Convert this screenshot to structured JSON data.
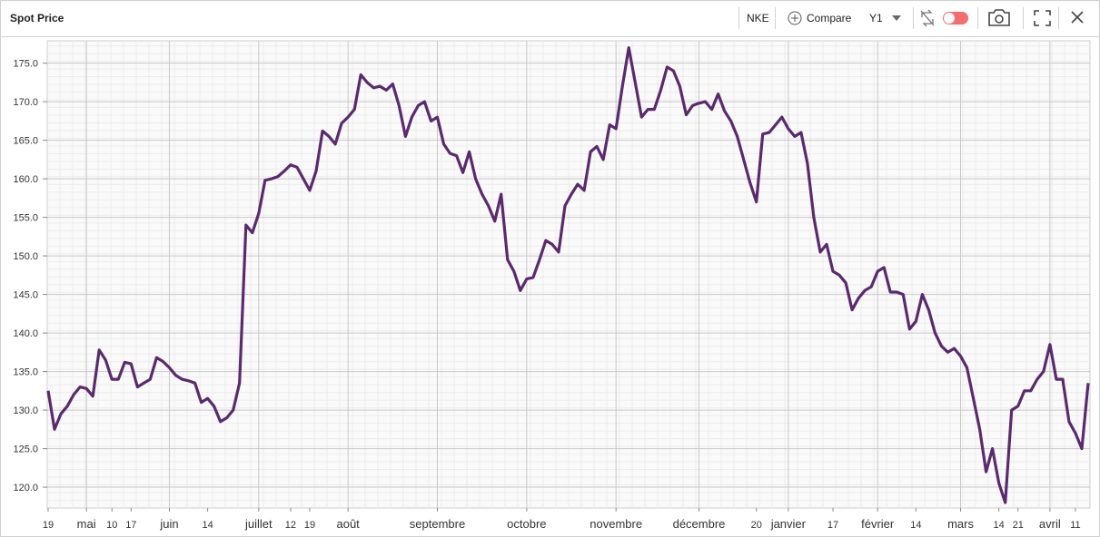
{
  "toolbar": {
    "ticker": "NKE",
    "compare": "Compare",
    "period": "Y1"
  },
  "chart_data": {
    "type": "line",
    "title": "Spot Price",
    "categories": [
      "19",
      null,
      null,
      null,
      null,
      null,
      "mai",
      null,
      null,
      null,
      "10",
      null,
      null,
      "17",
      null,
      null,
      null,
      null,
      null,
      "juin",
      null,
      null,
      null,
      null,
      null,
      "14",
      null,
      null,
      null,
      null,
      null,
      null,
      null,
      "juillet",
      null,
      null,
      null,
      null,
      "12",
      null,
      null,
      "19",
      null,
      null,
      null,
      null,
      null,
      "août",
      null,
      null,
      null,
      null,
      null,
      null,
      null,
      null,
      null,
      null,
      null,
      null,
      null,
      "septembre",
      null,
      null,
      null,
      null,
      null,
      null,
      null,
      null,
      null,
      null,
      null,
      null,
      null,
      "octobre",
      null,
      null,
      null,
      null,
      null,
      null,
      null,
      null,
      null,
      null,
      null,
      null,
      null,
      "novembre",
      null,
      null,
      null,
      null,
      null,
      null,
      null,
      null,
      null,
      null,
      null,
      null,
      "décembre",
      null,
      null,
      null,
      null,
      null,
      null,
      null,
      null,
      "20",
      null,
      null,
      null,
      null,
      "janvier",
      null,
      null,
      null,
      null,
      null,
      null,
      "17",
      null,
      null,
      null,
      null,
      null,
      null,
      "février",
      null,
      null,
      null,
      null,
      null,
      "14",
      null,
      null,
      null,
      null,
      null,
      null,
      "mars",
      null,
      null,
      null,
      null,
      null,
      "14",
      null,
      null,
      "21",
      null,
      null,
      null,
      null,
      "avril",
      null,
      null,
      null,
      "11",
      null,
      null
    ],
    "series": [
      {
        "name": "NKE",
        "color": "#5b2a6e",
        "values": [
          132.5,
          127.5,
          129.5,
          130.5,
          132,
          133,
          132.8,
          131.8,
          137.8,
          136.5,
          134,
          134,
          136.2,
          136,
          133,
          133.5,
          134,
          136.8,
          136.3,
          135.5,
          134.5,
          134,
          133.8,
          133.5,
          131,
          131.5,
          130.5,
          128.5,
          129,
          130,
          133.5,
          154,
          153,
          155.5,
          159.8,
          160,
          160.3,
          161,
          161.8,
          161.5,
          160,
          158.5,
          161,
          166.2,
          165.5,
          164.5,
          167.2,
          168,
          169,
          173.5,
          172.5,
          171.8,
          172,
          171.5,
          172.3,
          169.5,
          165.5,
          168,
          169.5,
          170,
          167.5,
          168,
          164.5,
          163.3,
          163,
          160.8,
          163.5,
          160,
          158,
          156.5,
          154.5,
          158,
          149.5,
          148,
          145.5,
          147,
          147.2,
          149.5,
          152,
          151.5,
          150.5,
          156.5,
          158,
          159.3,
          158.5,
          163.5,
          164.2,
          162.5,
          167,
          166.5,
          172,
          177,
          172.5,
          168,
          169,
          169,
          171.5,
          174.5,
          174,
          172,
          168.3,
          169.5,
          169.8,
          170,
          169,
          171,
          168.8,
          167.5,
          165.5,
          162.5,
          159.5,
          157,
          165.8,
          166,
          167,
          168,
          166.5,
          165.5,
          166,
          162,
          155,
          150.5,
          151.5,
          148,
          147.5,
          146.5,
          143,
          144.5,
          145.5,
          146,
          148,
          148.5,
          145.3,
          145.3,
          145,
          140.5,
          141.5,
          145,
          143,
          140,
          138.3,
          137.5,
          138,
          137,
          135.5,
          131.5,
          127.5,
          122,
          125,
          120.5,
          118,
          130,
          130.5,
          132.5,
          132.5,
          134,
          135,
          138.5,
          134,
          134,
          128.5,
          127,
          125,
          133.5
        ]
      }
    ],
    "ylim": [
      117.3,
      177.9
    ],
    "yticks": [
      {
        "value": 120,
        "label": "120.0"
      },
      {
        "value": 125,
        "label": "125.0"
      },
      {
        "value": 130,
        "label": "130.0"
      },
      {
        "value": 135,
        "label": "135.0"
      },
      {
        "value": 140,
        "label": "140.0"
      },
      {
        "value": 145,
        "label": "145.0"
      },
      {
        "value": 150,
        "label": "150.0"
      },
      {
        "value": 155,
        "label": "155.0"
      },
      {
        "value": 160,
        "label": "160.0"
      },
      {
        "value": 165,
        "label": "165.0"
      },
      {
        "value": 170,
        "label": "170.0"
      },
      {
        "value": 175,
        "label": "175.0"
      }
    ],
    "grid": true
  }
}
